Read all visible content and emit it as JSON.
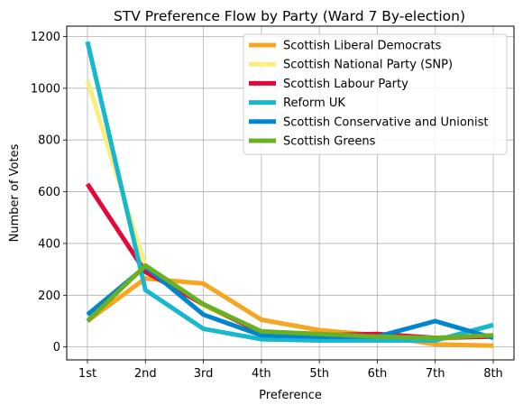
{
  "chart_data": {
    "type": "line",
    "title": "STV Preference Flow by Party (Ward 7 By-election)",
    "xlabel": "Preference",
    "ylabel": "Number of Votes",
    "categories": [
      "1st",
      "2nd",
      "3rd",
      "4th",
      "5th",
      "6th",
      "7th",
      "8th"
    ],
    "yticks": [
      0,
      200,
      400,
      600,
      800,
      1000,
      1200
    ],
    "ylim": [
      -50,
      1240
    ],
    "grid": true,
    "legend_position": "top-right",
    "series": [
      {
        "name": "Scottish Liberal Democrats",
        "color": "#F6A623",
        "values": [
          100,
          265,
          245,
          105,
          65,
          45,
          10,
          5
        ]
      },
      {
        "name": "Scottish National Party (SNP)",
        "color": "#FBEE7E",
        "values": [
          1030,
          310,
          160,
          55,
          45,
          40,
          30,
          45
        ]
      },
      {
        "name": "Scottish Labour Party",
        "color": "#E3073C",
        "values": [
          630,
          290,
          165,
          55,
          45,
          50,
          35,
          40
        ]
      },
      {
        "name": "Reform UK",
        "color": "#17B8CE",
        "values": [
          1180,
          220,
          70,
          30,
          25,
          25,
          25,
          85
        ]
      },
      {
        "name": "Scottish Conservative and Unionist",
        "color": "#0086D1",
        "values": [
          125,
          310,
          125,
          45,
          40,
          40,
          100,
          35
        ]
      },
      {
        "name": "Scottish Greens",
        "color": "#6AB023",
        "values": [
          100,
          315,
          165,
          60,
          50,
          40,
          35,
          45
        ]
      }
    ]
  }
}
